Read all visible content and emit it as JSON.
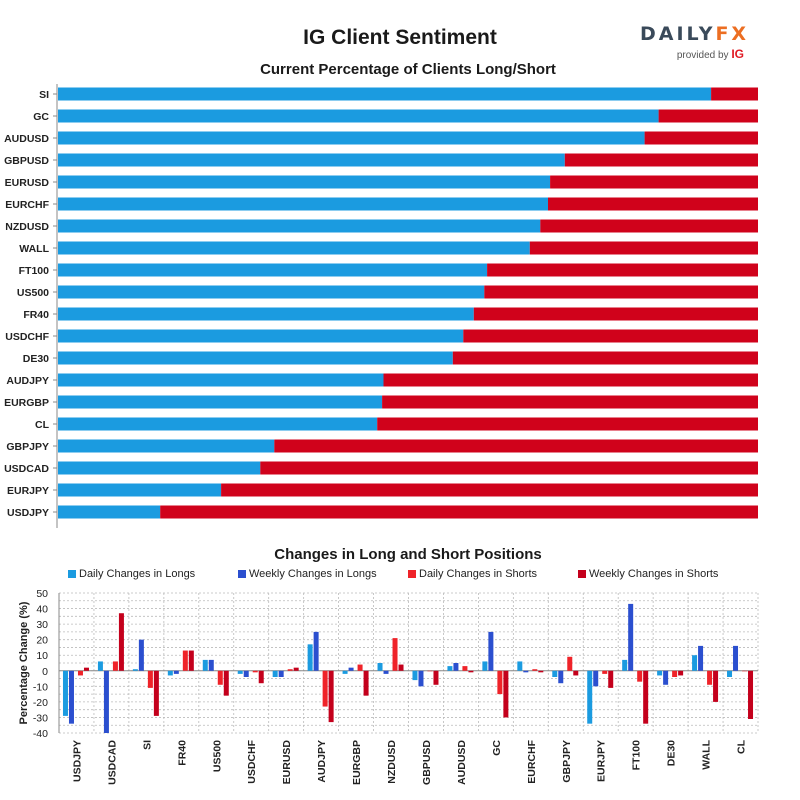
{
  "title": "IG Client Sentiment",
  "logo": {
    "brand_main": "DAILY",
    "brand_fx": "FX",
    "provided_by": "provided by",
    "ig": "IG"
  },
  "colors": {
    "long": "#1b9be0",
    "short": "#d0021b",
    "daily_long": "#1b9be0",
    "weekly_long": "#2b4fcf",
    "daily_short": "#ef2329",
    "weekly_short": "#c4001c"
  },
  "chart_data": [
    {
      "type": "bar",
      "orientation": "horizontal",
      "stacked": true,
      "title": "Current Percentage of Clients Long/Short",
      "categories": [
        "SI",
        "GC",
        "AUDUSD",
        "GBPUSD",
        "EURUSD",
        "EURCHF",
        "NZDUSD",
        "WALL",
        "FT100",
        "US500",
        "FR40",
        "USDCHF",
        "DE30",
        "AUDJPY",
        "EURGBP",
        "CL",
        "GBPJPY",
        "USDCAD",
        "EURJPY",
        "USDJPY"
      ],
      "series": [
        {
          "values": [
            93.3,
            85.8,
            83.8,
            72.4,
            70.3,
            70.0,
            68.9,
            67.4,
            61.3,
            60.9,
            59.4,
            57.9,
            56.4,
            46.5,
            46.3,
            45.6,
            30.9,
            28.9,
            23.3,
            14.6
          ]
        },
        {
          "values": [
            6.7,
            14.2,
            16.2,
            27.6,
            29.7,
            30.0,
            31.1,
            32.6,
            38.7,
            39.1,
            40.6,
            42.1,
            43.6,
            53.5,
            53.7,
            54.4,
            69.1,
            71.1,
            76.7,
            85.4
          ]
        }
      ],
      "xlim": [
        0,
        100
      ]
    },
    {
      "type": "bar",
      "title": "Changes in Long and Short Positions",
      "ylabel": "Percentage Change (%)",
      "ylim": [
        -40,
        50
      ],
      "yticks": [
        "50",
        "40",
        "30",
        "20",
        "10",
        "0",
        "-10",
        "-20",
        "-30",
        "-40"
      ],
      "grid": true,
      "legend_position": "top",
      "categories": [
        "USDJPY",
        "USDCAD",
        "SI",
        "FR40",
        "US500",
        "USDCHF",
        "EURUSD",
        "AUDJPY",
        "EURGBP",
        "NZDUSD",
        "GBPUSD",
        "AUDUSD",
        "GC",
        "EURCHF",
        "GBPJPY",
        "EURJPY",
        "FT100",
        "DE30",
        "WALL",
        "CL"
      ],
      "series": [
        {
          "name": "Daily Changes in Longs",
          "values": [
            -29,
            6,
            1,
            -3,
            7,
            -2,
            -4,
            17,
            -2,
            5,
            -6,
            3,
            6,
            6,
            -4,
            -34,
            7,
            -3,
            10,
            -4
          ]
        },
        {
          "name": "Weekly Changes in Longs",
          "values": [
            -34,
            -40,
            20,
            -2,
            7,
            -4,
            -4,
            25,
            2,
            -2,
            -10,
            5,
            25,
            -1,
            -8,
            -10,
            43,
            -9,
            16,
            16
          ]
        },
        {
          "name": "Daily Changes in Shorts",
          "values": [
            -3,
            6,
            -11,
            13,
            -9,
            -1,
            1,
            -23,
            4,
            21,
            0,
            3,
            -15,
            1,
            9,
            -2,
            -7,
            -4,
            -9,
            0
          ]
        },
        {
          "name": "Weekly Changes in Shorts",
          "values": [
            2,
            37,
            -29,
            13,
            -16,
            -8,
            2,
            -33,
            -16,
            4,
            -9,
            -1,
            -30,
            -1,
            -3,
            -11,
            -34,
            -3,
            -20,
            -31
          ]
        }
      ]
    }
  ]
}
